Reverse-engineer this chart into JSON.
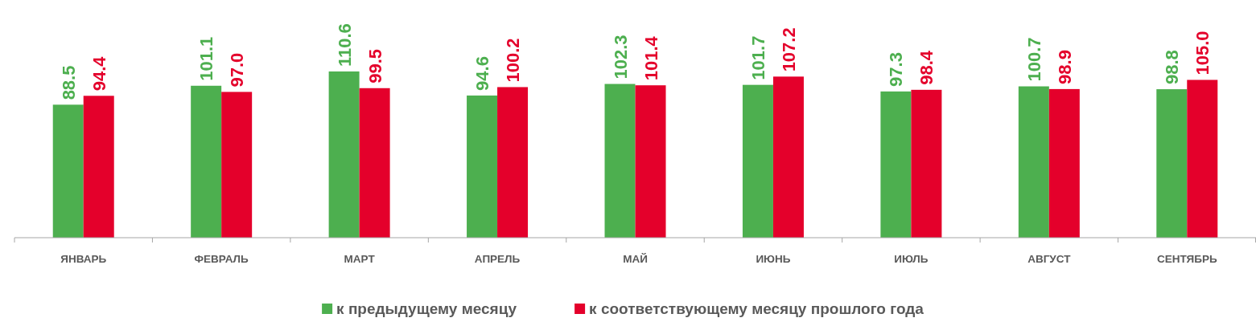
{
  "chart_data": {
    "type": "bar",
    "categories": [
      "ЯНВАРЬ",
      "ФЕВРАЛЬ",
      "МАРТ",
      "АПРЕЛЬ",
      "МАЙ",
      "ИЮНЬ",
      "ИЮЛЬ",
      "АВГУСТ",
      "СЕНТЯБРЬ"
    ],
    "series": [
      {
        "name": "к предыдущему месяцу",
        "color": "#4daf4f",
        "values": [
          88.5,
          101.1,
          110.6,
          94.6,
          102.3,
          101.7,
          97.3,
          100.7,
          98.8
        ],
        "value_labels": [
          "88.5",
          "101.1",
          "110.6",
          "94.6",
          "102.3",
          "101.7",
          "97.3",
          "100.7",
          "98.8"
        ]
      },
      {
        "name": "к соответствующему месяцу прошлого года",
        "color": "#e4002b",
        "values": [
          94.4,
          97.0,
          99.5,
          100.2,
          101.4,
          107.2,
          98.4,
          98.9,
          105.0
        ],
        "value_labels": [
          "94.4",
          "97.0",
          "99.5",
          "100.2",
          "101.4",
          "107.2",
          "98.4",
          "98.9",
          "105.0"
        ]
      }
    ],
    "legend": "bottom"
  }
}
